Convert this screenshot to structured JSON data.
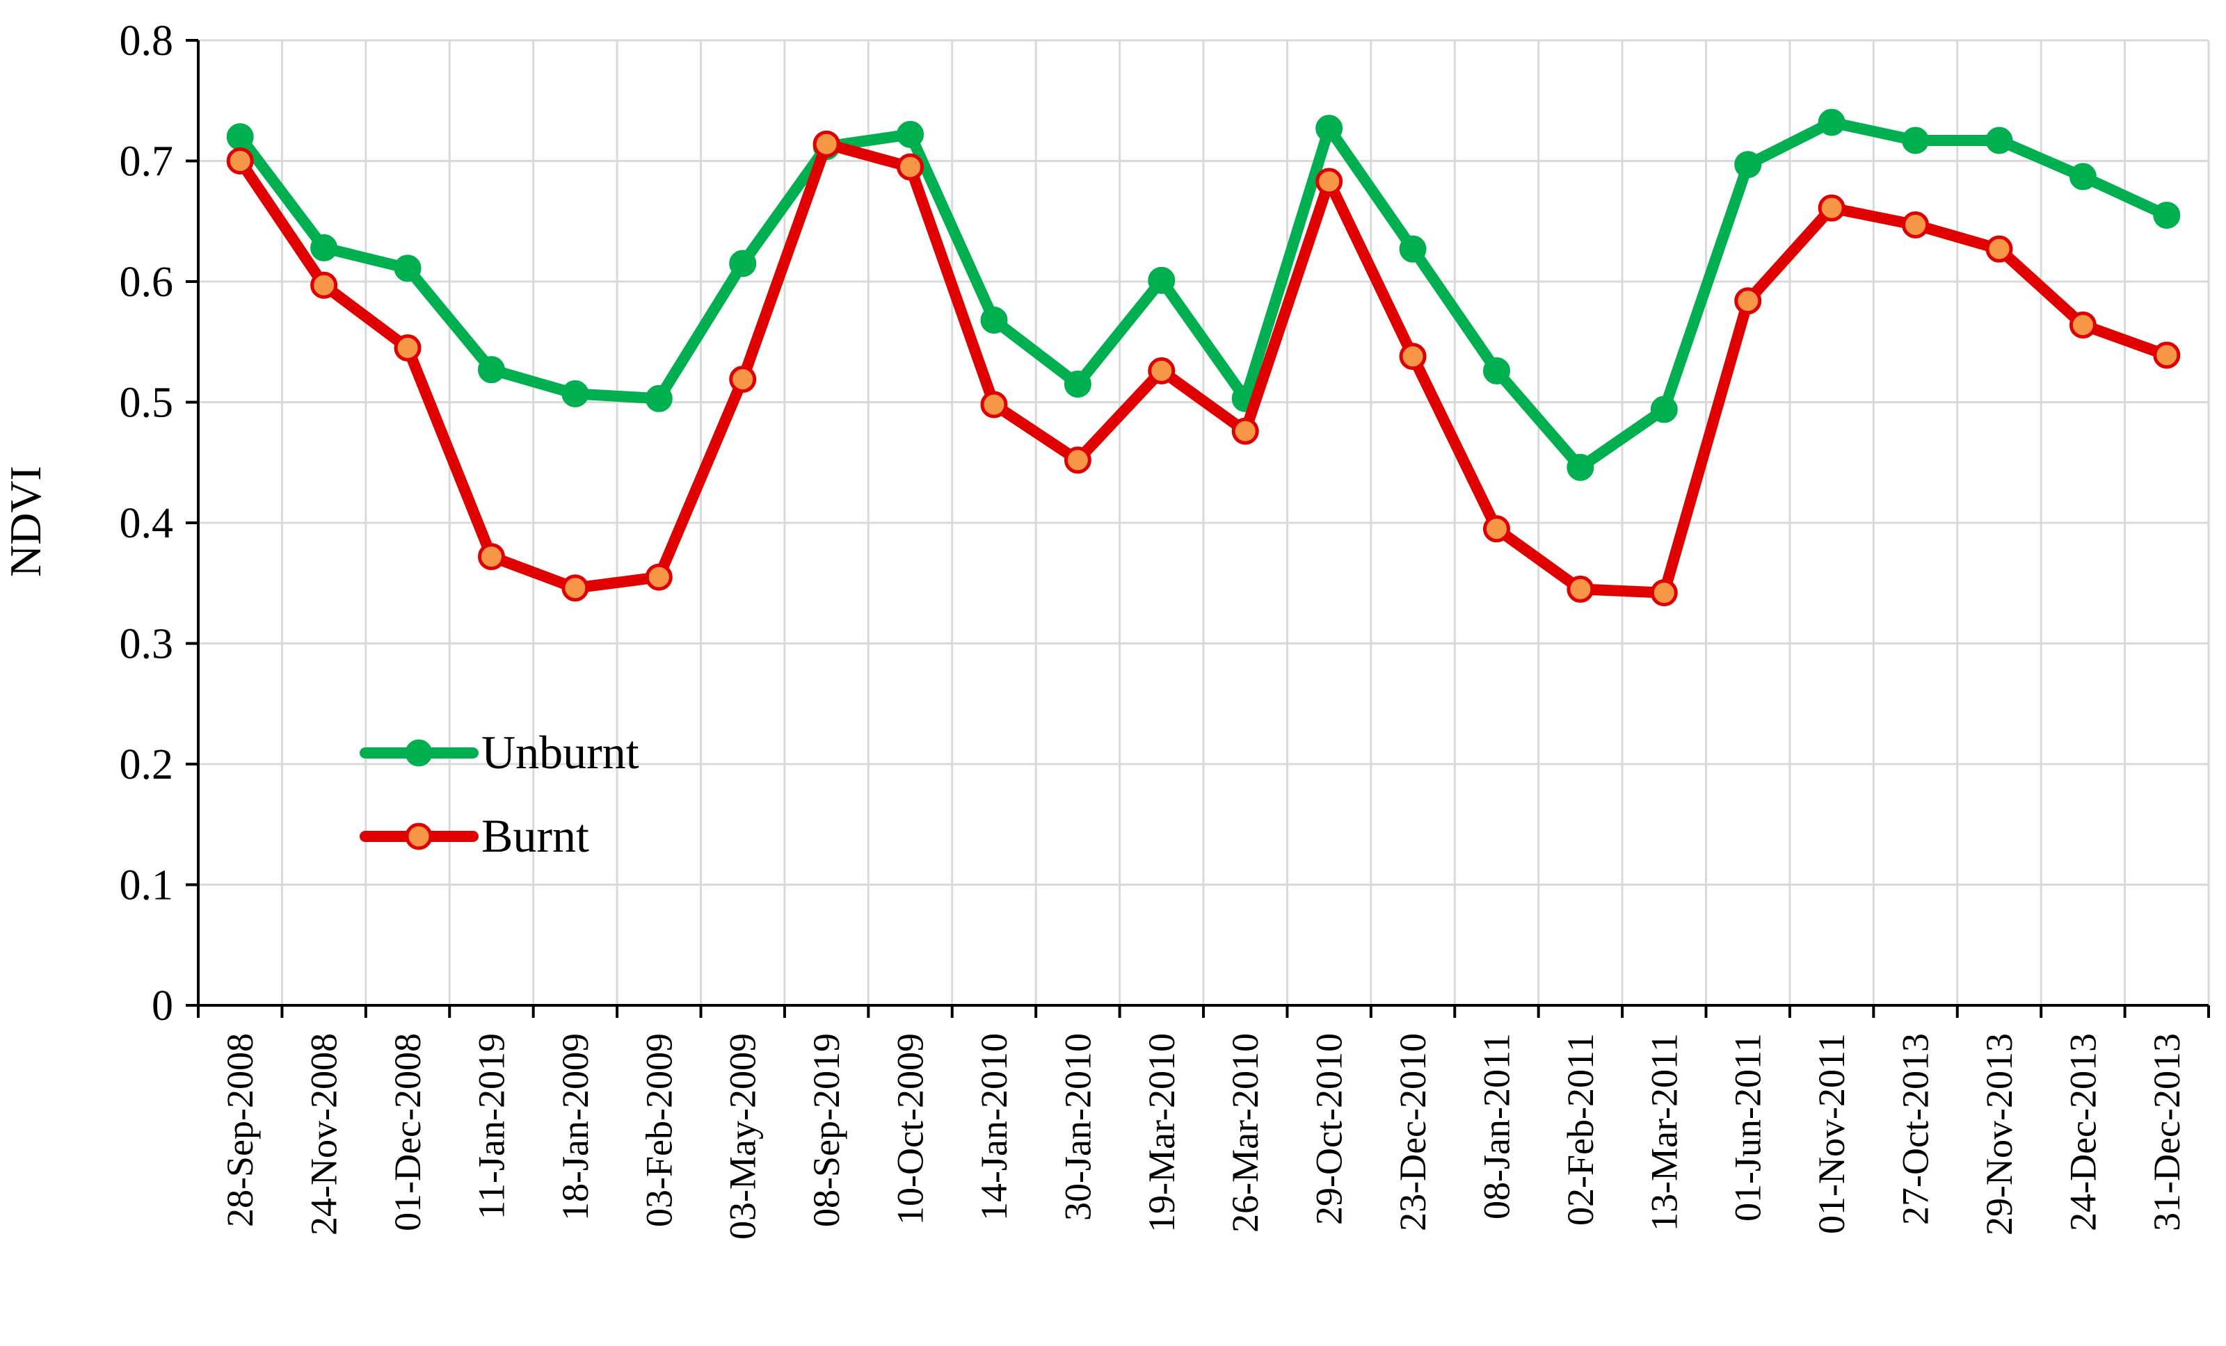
{
  "chart_data": {
    "type": "line",
    "title": "",
    "xlabel": "",
    "ylabel": "NDVI",
    "ylim": [
      0,
      0.8
    ],
    "yticks": [
      "0",
      "0.1",
      "0.2",
      "0.3",
      "0.4",
      "0.5",
      "0.6",
      "0.7",
      "0.8"
    ],
    "grid": true,
    "legend_position": "left-center",
    "categories": [
      "28-Sep-2008",
      "24-Nov-2008",
      "01-Dec-2008",
      "11-Jan-2019",
      "18-Jan-2009",
      "03-Feb-2009",
      "03-May-2009",
      "08-Sep-2019",
      "10-Oct-2009",
      "14-Jan-2010",
      "30-Jan-2010",
      "19-Mar-2010",
      "26-Mar-2010",
      "29-Oct-2010",
      "23-Dec-2010",
      "08-Jan-2011",
      "02-Feb-2011",
      "13-Mar-2011",
      "01-Jun-2011",
      "01-Nov-2011",
      "27-Oct-2013",
      "29-Nov-2013",
      "24-Dec-2013",
      "31-Dec-2013"
    ],
    "series": [
      {
        "name": "Unburnt",
        "color": "#00B050",
        "marker_fill": "#00B050",
        "values": [
          0.72,
          0.628,
          0.611,
          0.527,
          0.507,
          0.503,
          0.615,
          0.712,
          0.722,
          0.568,
          0.515,
          0.601,
          0.503,
          0.727,
          0.627,
          0.526,
          0.446,
          0.494,
          0.697,
          0.732,
          0.717,
          0.717,
          0.687,
          0.655
        ]
      },
      {
        "name": "Burnt",
        "color": "#E00000",
        "marker_fill": "#F79646",
        "values": [
          0.7,
          0.597,
          0.545,
          0.372,
          0.346,
          0.355,
          0.519,
          0.714,
          0.695,
          0.498,
          0.452,
          0.526,
          0.476,
          0.683,
          0.538,
          0.395,
          0.345,
          0.342,
          0.584,
          0.661,
          0.647,
          0.627,
          0.564,
          0.539
        ]
      }
    ]
  }
}
